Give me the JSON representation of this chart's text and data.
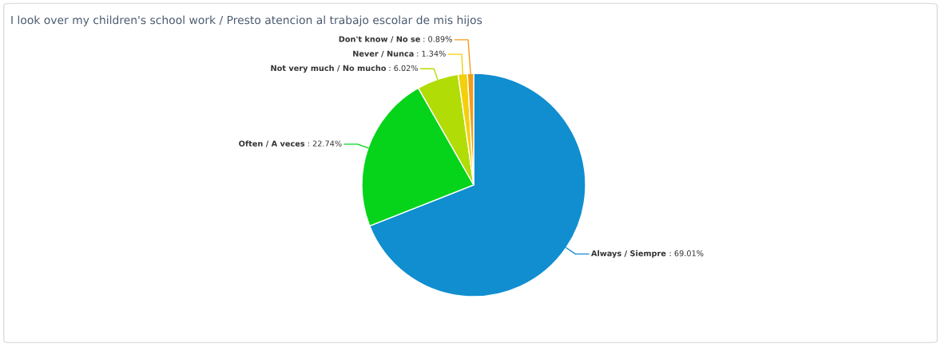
{
  "chart_data": {
    "type": "pie",
    "title": "I look over my children's school work / Presto atencion al trabajo escolar de mis hijos",
    "categories": [
      "Always / Siempre",
      "Often / A veces",
      "Not very much / No mucho",
      "Never / Nunca",
      "Don't know / No se"
    ],
    "values": [
      69.01,
      22.74,
      6.02,
      1.34,
      0.89
    ],
    "colors": [
      "#108ed0",
      "#06d41a",
      "#b2dc06",
      "#f4d00c",
      "#f39c1a"
    ],
    "value_labels": [
      ": 69.01%",
      ": 22.74%",
      ": 6.02%",
      ": 1.34%",
      ": 0.89%"
    ]
  }
}
